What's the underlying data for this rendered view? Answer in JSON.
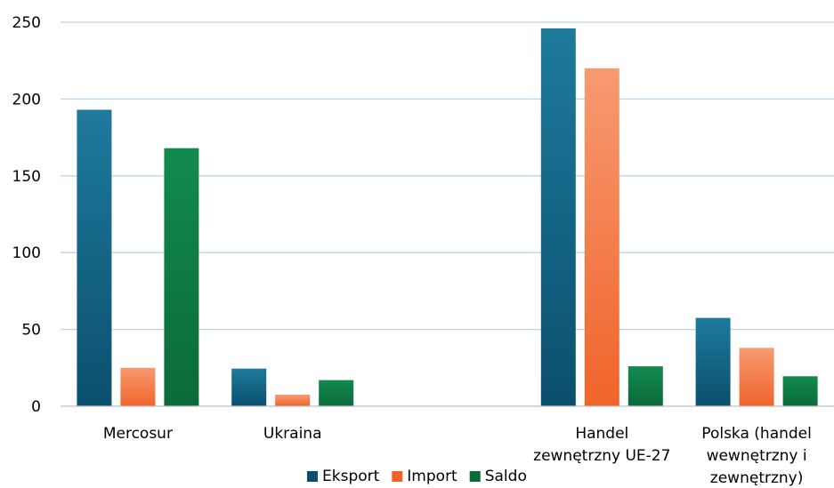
{
  "chart_data": {
    "type": "bar",
    "categories": [
      [
        "Mercosur"
      ],
      [
        "Ukraina"
      ],
      [
        ""
      ],
      [
        "Handel",
        "zewnętrzny UE-27"
      ],
      [
        "Polska (handel",
        "wewnętrzny i",
        "zewnętrzny)"
      ]
    ],
    "series": [
      {
        "name": "Eksport",
        "values": [
          193,
          24.5,
          null,
          246,
          57.5
        ]
      },
      {
        "name": "Import",
        "values": [
          25,
          7.5,
          null,
          220,
          38
        ]
      },
      {
        "name": "Saldo",
        "values": [
          168,
          17,
          null,
          26,
          19.5
        ]
      }
    ],
    "yticks": [
      "0",
      "50",
      "100",
      "150",
      "200",
      "250"
    ],
    "ylim": [
      0,
      250
    ],
    "grid": true,
    "legend_position": "bottom",
    "colors": {
      "Eksport": [
        "#1e7a9c",
        "#0b4f6e"
      ],
      "Import": [
        "#f79a72",
        "#f0642a"
      ],
      "Saldo": [
        "#128a4e",
        "#0b6a3a"
      ],
      "grid": "#b9d6e8",
      "axis": "#bfbfbf"
    }
  }
}
